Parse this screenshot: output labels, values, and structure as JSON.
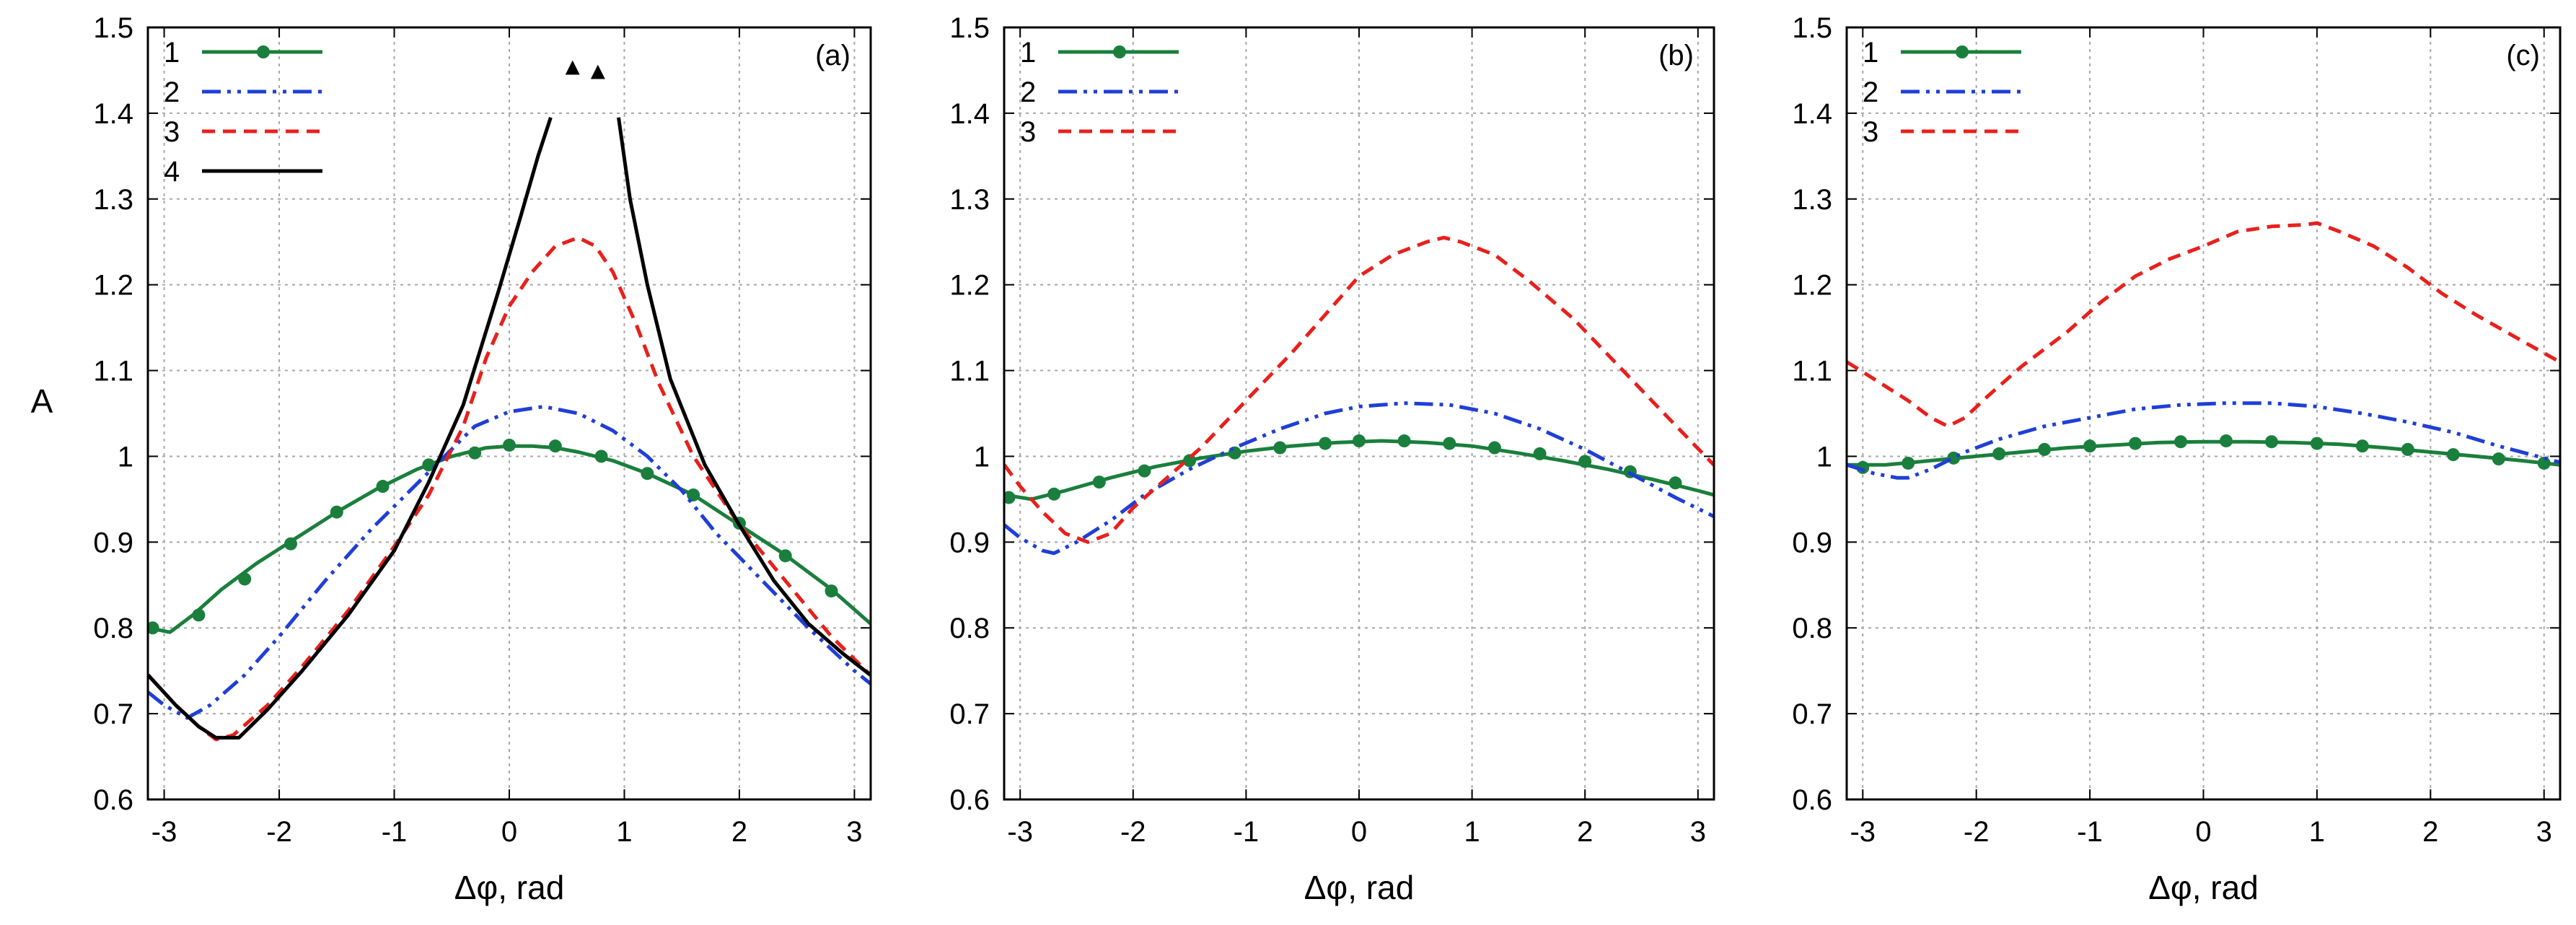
{
  "chart_data": [
    {
      "type": "line",
      "panel_label": "(a)",
      "xlabel": "Δφ, rad",
      "ylabel": "A",
      "xlim": [
        -3.1416,
        3.1416
      ],
      "ylim": [
        0.6,
        1.5
      ],
      "xticks": [
        -3,
        -2,
        -1,
        0,
        1,
        2,
        3
      ],
      "yticks": [
        0.6,
        0.7,
        0.8,
        0.9,
        1,
        1.1,
        1.2,
        1.3,
        1.4,
        1.5
      ],
      "xtick_labels": [
        "-3",
        "-2",
        "-1",
        "0",
        "1",
        "2",
        "3"
      ],
      "ytick_labels": [
        "0.6",
        "0.7",
        "0.8",
        "0.9",
        "1",
        "1.1",
        "1.2",
        "1.3",
        "1.4",
        "1.5"
      ],
      "grid": true,
      "legend_position": "top-left",
      "annotations": [
        {
          "text": "▲",
          "x": 0.55,
          "y": 1.445
        },
        {
          "text": "▲",
          "x": 0.77,
          "y": 1.44
        }
      ],
      "series": [
        {
          "name": "1",
          "color": "#1a7f3c",
          "dash": "solid",
          "marker": true,
          "x": [
            -3.14,
            -2.95,
            -2.75,
            -2.5,
            -2.2,
            -1.85,
            -1.5,
            -1.15,
            -0.8,
            -0.5,
            -0.2,
            0.0,
            0.2,
            0.4,
            0.6,
            0.9,
            1.2,
            1.6,
            2.0,
            2.4,
            2.8,
            3.14
          ],
          "y": [
            0.8,
            0.795,
            0.815,
            0.845,
            0.875,
            0.905,
            0.935,
            0.962,
            0.985,
            1.0,
            1.01,
            1.012,
            1.012,
            1.01,
            1.005,
            0.995,
            0.98,
            0.955,
            0.92,
            0.885,
            0.845,
            0.805
          ],
          "marker_x": [
            -3.1,
            -2.7,
            -2.3,
            -1.9,
            -1.5,
            -1.1,
            -0.7,
            -0.3,
            0.0,
            0.4,
            0.8,
            1.2,
            1.6,
            2.0,
            2.4,
            2.8
          ],
          "marker_y": [
            0.8,
            0.815,
            0.857,
            0.898,
            0.935,
            0.965,
            0.99,
            1.004,
            1.013,
            1.012,
            1.0,
            0.98,
            0.955,
            0.922,
            0.884,
            0.843
          ]
        },
        {
          "name": "2",
          "color": "#1f3fd6",
          "dash": "dashdotdot",
          "marker": false,
          "x": [
            -3.14,
            -3.0,
            -2.8,
            -2.6,
            -2.3,
            -2.0,
            -1.6,
            -1.2,
            -0.9,
            -0.6,
            -0.3,
            0.0,
            0.3,
            0.6,
            0.9,
            1.2,
            1.5,
            1.8,
            2.2,
            2.6,
            3.0,
            3.14
          ],
          "y": [
            0.725,
            0.71,
            0.695,
            0.71,
            0.745,
            0.79,
            0.855,
            0.915,
            0.955,
            0.995,
            1.035,
            1.052,
            1.058,
            1.05,
            1.03,
            1.0,
            0.96,
            0.91,
            0.855,
            0.8,
            0.75,
            0.735
          ]
        },
        {
          "name": "3",
          "color": "#e8201c",
          "dash": "dashed",
          "marker": false,
          "x": [
            -3.14,
            -2.9,
            -2.7,
            -2.55,
            -2.4,
            -2.1,
            -1.8,
            -1.4,
            -1.0,
            -0.7,
            -0.4,
            -0.2,
            0.0,
            0.2,
            0.4,
            0.6,
            0.75,
            0.9,
            1.1,
            1.3,
            1.6,
            2.0,
            2.4,
            2.8,
            3.14
          ],
          "y": [
            0.745,
            0.71,
            0.685,
            0.67,
            0.675,
            0.71,
            0.755,
            0.82,
            0.895,
            0.955,
            1.035,
            1.115,
            1.175,
            1.215,
            1.245,
            1.255,
            1.245,
            1.215,
            1.155,
            1.085,
            1.0,
            0.92,
            0.855,
            0.79,
            0.745
          ]
        },
        {
          "name": "4",
          "color": "#000000",
          "dash": "solid",
          "marker": false,
          "segments": [
            {
              "x": [
                -3.14,
                -2.9,
                -2.7,
                -2.55,
                -2.35,
                -2.1,
                -1.8,
                -1.4,
                -1.0,
                -0.7,
                -0.4,
                -0.1,
                0.1,
                0.25,
                0.36
              ],
              "y": [
                0.745,
                0.71,
                0.685,
                0.672,
                0.672,
                0.705,
                0.75,
                0.815,
                0.89,
                0.97,
                1.06,
                1.19,
                1.28,
                1.35,
                1.395
              ]
            },
            {
              "x": [
                0.95,
                1.05,
                1.2,
                1.4,
                1.7,
                2.0,
                2.3,
                2.6,
                2.9,
                3.14
              ],
              "y": [
                1.395,
                1.3,
                1.2,
                1.09,
                0.99,
                0.92,
                0.855,
                0.805,
                0.77,
                0.745
              ]
            }
          ]
        }
      ]
    },
    {
      "type": "line",
      "panel_label": "(b)",
      "xlabel": "Δφ, rad",
      "ylabel": "",
      "xlim": [
        -3.1416,
        3.1416
      ],
      "ylim": [
        0.6,
        1.5
      ],
      "xticks": [
        -3,
        -2,
        -1,
        0,
        1,
        2,
        3
      ],
      "yticks": [
        0.6,
        0.7,
        0.8,
        0.9,
        1,
        1.1,
        1.2,
        1.3,
        1.4,
        1.5
      ],
      "xtick_labels": [
        "-3",
        "-2",
        "-1",
        "0",
        "1",
        "2",
        "3"
      ],
      "ytick_labels": [
        "0.6",
        "0.7",
        "0.8",
        "0.9",
        "1",
        "1.1",
        "1.2",
        "1.3",
        "1.4",
        "1.5"
      ],
      "grid": true,
      "legend_position": "top-left",
      "annotations": [],
      "series": [
        {
          "name": "1",
          "color": "#1a7f3c",
          "dash": "solid",
          "marker": true,
          "x": [
            -3.14,
            -2.9,
            -2.6,
            -2.2,
            -1.8,
            -1.4,
            -1.0,
            -0.6,
            -0.2,
            0.2,
            0.6,
            1.0,
            1.4,
            1.8,
            2.2,
            2.6,
            3.0,
            3.14
          ],
          "y": [
            0.955,
            0.95,
            0.96,
            0.975,
            0.988,
            0.998,
            1.006,
            1.012,
            1.016,
            1.018,
            1.016,
            1.012,
            1.004,
            0.995,
            0.985,
            0.973,
            0.96,
            0.955
          ],
          "marker_x": [
            -3.1,
            -2.7,
            -2.3,
            -1.9,
            -1.5,
            -1.1,
            -0.7,
            -0.3,
            0.0,
            0.4,
            0.8,
            1.2,
            1.6,
            2.0,
            2.4,
            2.8
          ],
          "marker_y": [
            0.952,
            0.956,
            0.97,
            0.983,
            0.995,
            1.004,
            1.01,
            1.015,
            1.018,
            1.018,
            1.015,
            1.01,
            1.003,
            0.994,
            0.982,
            0.969
          ]
        },
        {
          "name": "2",
          "color": "#1f3fd6",
          "dash": "dashdotdot",
          "marker": false,
          "x": [
            -3.14,
            -3.0,
            -2.8,
            -2.7,
            -2.5,
            -2.2,
            -1.9,
            -1.5,
            -1.1,
            -0.7,
            -0.3,
            0.0,
            0.4,
            0.8,
            1.2,
            1.6,
            2.0,
            2.4,
            2.8,
            3.14
          ],
          "y": [
            0.92,
            0.905,
            0.89,
            0.887,
            0.9,
            0.925,
            0.955,
            0.985,
            1.01,
            1.032,
            1.05,
            1.058,
            1.062,
            1.06,
            1.05,
            1.032,
            1.008,
            0.98,
            0.952,
            0.93
          ]
        },
        {
          "name": "3",
          "color": "#e8201c",
          "dash": "dashed",
          "marker": false,
          "x": [
            -3.14,
            -3.0,
            -2.8,
            -2.6,
            -2.4,
            -2.2,
            -2.0,
            -1.7,
            -1.4,
            -1.0,
            -0.6,
            -0.2,
            0.0,
            0.3,
            0.6,
            0.75,
            0.9,
            1.2,
            1.5,
            1.9,
            2.3,
            2.7,
            3.14
          ],
          "y": [
            0.99,
            0.965,
            0.935,
            0.91,
            0.9,
            0.91,
            0.94,
            0.975,
            1.01,
            1.065,
            1.12,
            1.18,
            1.21,
            1.235,
            1.25,
            1.255,
            1.25,
            1.235,
            1.205,
            1.16,
            1.105,
            1.05,
            0.99
          ]
        }
      ]
    },
    {
      "type": "line",
      "panel_label": "(c)",
      "xlabel": "Δφ, rad",
      "ylabel": "",
      "xlim": [
        -3.1416,
        3.1416
      ],
      "ylim": [
        0.6,
        1.5
      ],
      "xticks": [
        -3,
        -2,
        -1,
        0,
        1,
        2,
        3
      ],
      "yticks": [
        0.6,
        0.7,
        0.8,
        0.9,
        1,
        1.1,
        1.2,
        1.3,
        1.4,
        1.5
      ],
      "xtick_labels": [
        "-3",
        "-2",
        "-1",
        "0",
        "1",
        "2",
        "3"
      ],
      "ytick_labels": [
        "0.6",
        "0.7",
        "0.8",
        "0.9",
        "1",
        "1.1",
        "1.2",
        "1.3",
        "1.4",
        "1.5"
      ],
      "grid": true,
      "legend_position": "top-left",
      "annotations": [],
      "series": [
        {
          "name": "1",
          "color": "#1a7f3c",
          "dash": "solid",
          "marker": true,
          "x": [
            -3.14,
            -2.8,
            -2.4,
            -2.0,
            -1.6,
            -1.2,
            -0.8,
            -0.4,
            0.0,
            0.4,
            0.8,
            1.2,
            1.6,
            2.0,
            2.4,
            2.8,
            3.14
          ],
          "y": [
            0.99,
            0.99,
            0.995,
            1.0,
            1.005,
            1.01,
            1.013,
            1.016,
            1.017,
            1.017,
            1.016,
            1.014,
            1.01,
            1.005,
            1.0,
            0.995,
            0.99
          ],
          "marker_x": [
            -3.0,
            -2.6,
            -2.2,
            -1.8,
            -1.4,
            -1.0,
            -0.6,
            -0.2,
            0.2,
            0.6,
            1.0,
            1.4,
            1.8,
            2.2,
            2.6,
            3.0
          ],
          "marker_y": [
            0.987,
            0.992,
            0.998,
            1.003,
            1.008,
            1.012,
            1.015,
            1.017,
            1.018,
            1.017,
            1.015,
            1.012,
            1.008,
            1.002,
            0.997,
            0.992
          ]
        },
        {
          "name": "2",
          "color": "#1f3fd6",
          "dash": "dashdotdot",
          "marker": false,
          "x": [
            -3.14,
            -2.9,
            -2.7,
            -2.6,
            -2.4,
            -2.1,
            -1.8,
            -1.4,
            -1.0,
            -0.6,
            -0.2,
            0.2,
            0.6,
            1.0,
            1.4,
            1.8,
            2.2,
            2.6,
            3.0,
            3.14
          ],
          "y": [
            0.99,
            0.98,
            0.975,
            0.975,
            0.985,
            1.005,
            1.02,
            1.035,
            1.045,
            1.055,
            1.06,
            1.062,
            1.062,
            1.058,
            1.05,
            1.04,
            1.028,
            1.012,
            0.998,
            0.993
          ]
        },
        {
          "name": "3",
          "color": "#e8201c",
          "dash": "dashed",
          "marker": false,
          "x": [
            -3.14,
            -2.9,
            -2.6,
            -2.4,
            -2.25,
            -2.1,
            -1.9,
            -1.6,
            -1.2,
            -0.9,
            -0.6,
            -0.3,
            0.0,
            0.3,
            0.6,
            0.9,
            1.0,
            1.2,
            1.5,
            1.8,
            2.1,
            2.4,
            2.8,
            3.14
          ],
          "y": [
            1.11,
            1.09,
            1.065,
            1.045,
            1.035,
            1.045,
            1.07,
            1.105,
            1.145,
            1.18,
            1.21,
            1.23,
            1.245,
            1.262,
            1.268,
            1.27,
            1.272,
            1.262,
            1.245,
            1.22,
            1.19,
            1.165,
            1.135,
            1.11
          ]
        }
      ]
    }
  ]
}
